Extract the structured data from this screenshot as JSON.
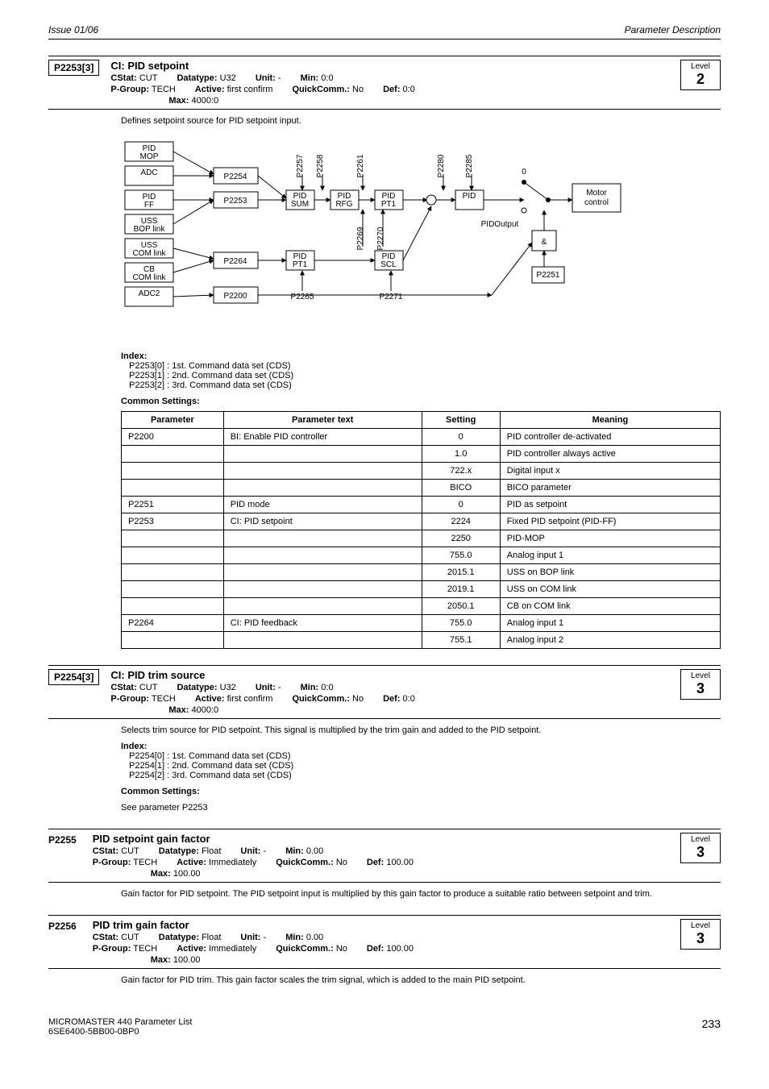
{
  "header": {
    "left": "Issue 01/06",
    "right": "Parameter Description"
  },
  "p2253": {
    "id": "P2253[3]",
    "title": "CI: PID setpoint",
    "cstat": "CUT",
    "pgroup": "TECH",
    "datatype": "U32",
    "active": "first confirm",
    "unit": "-",
    "quickcomm": "No",
    "min": "0:0",
    "def": "0:0",
    "max": "4000:0",
    "level": "2",
    "desc": "Defines setpoint source for PID setpoint input.",
    "diagram": {
      "left_nodes": [
        "PID\nMOP",
        "ADC",
        "PID\nFF",
        "USS\nBOP link",
        "USS\nCOM link",
        "CB\nCOM link",
        "ADC2"
      ],
      "p_nodes": [
        "P2254",
        "P2253",
        "P2264",
        "P2200"
      ],
      "mid_boxes": [
        "PID\nSUM",
        "PID\nRFG",
        "PID\nPT1",
        "PID",
        "PID\nPT1",
        "PID\nSCL"
      ],
      "top_labels": [
        "P2257",
        "P2258",
        "P2261",
        "P2280",
        "P2285"
      ],
      "mid_labels": [
        "P2269",
        "P2270"
      ],
      "bottom_labels": [
        "P2265",
        "P2271"
      ],
      "and": "&",
      "p2251": "P2251",
      "motor_control": "Motor\ncontrol",
      "pid_output": "PIDOutput",
      "zero": "0"
    },
    "index_label": "Index:",
    "index": [
      "P2253[0] : 1st. Command data set (CDS)",
      "P2253[1] : 2nd. Command data set (CDS)",
      "P2253[2] : 3rd. Command data set (CDS)"
    ],
    "common_label": "Common Settings:",
    "table": {
      "headers": [
        "Parameter",
        "Parameter text",
        "Setting",
        "Meaning"
      ],
      "rows": [
        [
          "P2200",
          "BI: Enable PID controller",
          "0",
          "PID controller de-activated"
        ],
        [
          "",
          "",
          "1.0",
          "PID controller always active"
        ],
        [
          "",
          "",
          "722.x",
          "Digital input x"
        ],
        [
          "",
          "",
          "BICO",
          "BICO parameter"
        ],
        [
          "P2251",
          "PID mode",
          "0",
          "PID as setpoint"
        ],
        [
          "P2253",
          "CI: PID setpoint",
          "2224",
          "Fixed PID setpoint (PID-FF)"
        ],
        [
          "",
          "",
          "2250",
          "PID-MOP"
        ],
        [
          "",
          "",
          "755.0",
          "Analog input 1"
        ],
        [
          "",
          "",
          "2015.1",
          "USS on BOP link"
        ],
        [
          "",
          "",
          "2019.1",
          "USS on COM link"
        ],
        [
          "",
          "",
          "2050.1",
          "CB on COM link"
        ],
        [
          "P2264",
          "CI: PID feedback",
          "755.0",
          "Analog input 1"
        ],
        [
          "",
          "",
          "755.1",
          "Analog input 2"
        ]
      ]
    }
  },
  "p2254": {
    "id": "P2254[3]",
    "title": "CI: PID trim source",
    "cstat": "CUT",
    "pgroup": "TECH",
    "datatype": "U32",
    "active": "first confirm",
    "unit": "-",
    "quickcomm": "No",
    "min": "0:0",
    "def": "0:0",
    "max": "4000:0",
    "level": "3",
    "desc": "Selects trim source for PID setpoint. This signal is multiplied by the trim gain and added to the PID setpoint.",
    "index_label": "Index:",
    "index": [
      "P2254[0] : 1st. Command data set (CDS)",
      "P2254[1] : 2nd. Command data set (CDS)",
      "P2254[2] : 3rd. Command data set (CDS)"
    ],
    "common_label": "Common Settings:",
    "common_text": "See parameter P2253"
  },
  "p2255": {
    "id": "P2255",
    "title": "PID setpoint gain factor",
    "cstat": "CUT",
    "pgroup": "TECH",
    "datatype": "Float",
    "active": "Immediately",
    "unit": "-",
    "quickcomm": "No",
    "min": "0.00",
    "def": "100.00",
    "max": "100.00",
    "level": "3",
    "desc": "Gain factor for PID setpoint. The PID setpoint input is multiplied by this gain factor to produce a suitable ratio between setpoint and trim."
  },
  "p2256": {
    "id": "P2256",
    "title": "PID trim gain factor",
    "cstat": "CUT",
    "pgroup": "TECH",
    "datatype": "Float",
    "active": "Immediately",
    "unit": "-",
    "quickcomm": "No",
    "min": "0.00",
    "def": "100.00",
    "max": "100.00",
    "level": "3",
    "desc": "Gain factor for PID trim. This gain factor scales the trim signal, which is added to the main PID setpoint."
  },
  "labels": {
    "cstat": "CStat:",
    "pgroup": "P-Group:",
    "datatype": "Datatype:",
    "active": "Active:",
    "unit": "Unit:",
    "quickcomm": "QuickComm.:",
    "min": "Min:",
    "def": "Def:",
    "max": "Max:",
    "level": "Level"
  },
  "footer": {
    "l1": "MICROMASTER 440    Parameter List",
    "l2": "6SE6400-5BB00-0BP0",
    "page": "233"
  }
}
